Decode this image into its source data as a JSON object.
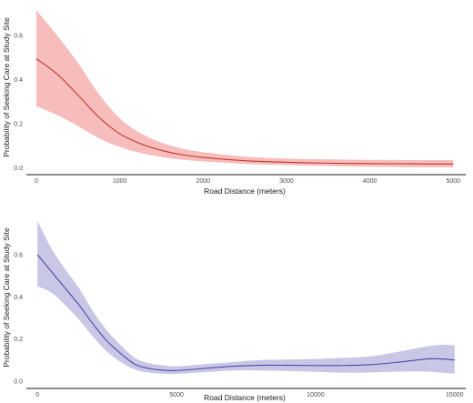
{
  "chart_data": [
    {
      "type": "line",
      "title": "",
      "xlabel": "Road Distance (meters)",
      "ylabel": "Probability of Seeking Care at Study Site",
      "xlim": [
        -120,
        5150
      ],
      "ylim": [
        -0.03,
        0.74
      ],
      "x_ticks": [
        0,
        1000,
        2000,
        3000,
        4000,
        5000
      ],
      "x_tick_labels": [
        "0",
        "1000",
        "2000",
        "3000",
        "4000",
        "5000"
      ],
      "y_ticks": [
        0.0,
        0.2,
        0.4,
        0.6
      ],
      "y_tick_labels": [
        "0.0",
        "0.2",
        "0.4",
        "0.6"
      ],
      "grid": false,
      "colors": {
        "line": "#c0392b",
        "band": "#f4a6a6"
      },
      "series": [
        {
          "x": [
            0,
            250,
            500,
            750,
            1000,
            1250,
            1500,
            1750,
            2000,
            2500,
            3000,
            3500,
            4000,
            4500,
            5000
          ],
          "values": [
            0.495,
            0.425,
            0.33,
            0.23,
            0.155,
            0.11,
            0.08,
            0.06,
            0.048,
            0.033,
            0.026,
            0.022,
            0.02,
            0.019,
            0.018
          ],
          "lower": [
            0.28,
            0.24,
            0.19,
            0.135,
            0.095,
            0.068,
            0.05,
            0.038,
            0.03,
            0.019,
            0.013,
            0.009,
            0.006,
            0.004,
            0.003
          ],
          "upper": [
            0.715,
            0.6,
            0.475,
            0.335,
            0.225,
            0.158,
            0.115,
            0.088,
            0.072,
            0.052,
            0.043,
            0.039,
            0.037,
            0.036,
            0.036
          ]
        }
      ]
    },
    {
      "type": "line",
      "title": "",
      "xlabel": "Road Distance (meters)",
      "ylabel": "Probability of Seeking Care at Study Site",
      "xlim": [
        -400,
        15400
      ],
      "ylim": [
        -0.035,
        0.79
      ],
      "x_ticks": [
        0,
        5000,
        10000,
        15000
      ],
      "x_tick_labels": [
        "0",
        "5000",
        "10000",
        "15000"
      ],
      "y_ticks": [
        0.0,
        0.2,
        0.4,
        0.6
      ],
      "y_tick_labels": [
        "0.0",
        "0.2",
        "0.4",
        "0.6"
      ],
      "grid": false,
      "colors": {
        "line": "#4a4aa8",
        "band": "#b7b3de"
      },
      "series": [
        {
          "x": [
            0,
            500,
            1000,
            1500,
            2000,
            2500,
            3000,
            3500,
            4000,
            4500,
            5000,
            6000,
            7000,
            8000,
            9000,
            10000,
            11000,
            12000,
            13000,
            14000,
            14500,
            15000
          ],
          "values": [
            0.6,
            0.52,
            0.44,
            0.36,
            0.27,
            0.19,
            0.13,
            0.08,
            0.06,
            0.052,
            0.05,
            0.06,
            0.07,
            0.075,
            0.075,
            0.074,
            0.074,
            0.078,
            0.09,
            0.105,
            0.105,
            0.1
          ],
          "lower": [
            0.45,
            0.42,
            0.36,
            0.29,
            0.21,
            0.14,
            0.09,
            0.055,
            0.04,
            0.035,
            0.034,
            0.042,
            0.05,
            0.05,
            0.048,
            0.044,
            0.04,
            0.041,
            0.045,
            0.045,
            0.04,
            0.035
          ],
          "upper": [
            0.76,
            0.63,
            0.53,
            0.44,
            0.33,
            0.24,
            0.17,
            0.11,
            0.085,
            0.075,
            0.07,
            0.08,
            0.09,
            0.1,
            0.102,
            0.105,
            0.11,
            0.118,
            0.14,
            0.165,
            0.172,
            0.17
          ]
        }
      ]
    }
  ]
}
